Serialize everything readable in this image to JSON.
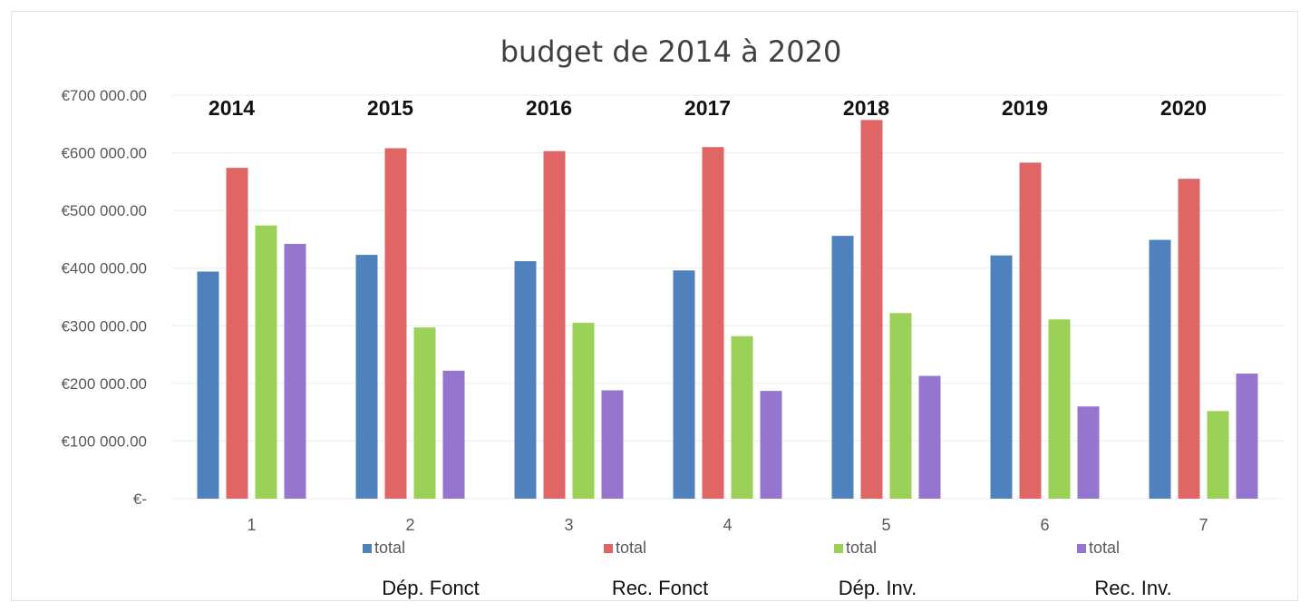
{
  "chart_data": {
    "type": "bar",
    "title": "budget de 2014 à 2020",
    "categories": [
      "1",
      "2",
      "3",
      "4",
      "5",
      "6",
      "7"
    ],
    "year_labels": [
      "2014",
      "2015",
      "2016",
      "2017",
      "2018",
      "2019",
      "2020"
    ],
    "ylim": [
      0,
      700000
    ],
    "yticks": [
      {
        "value": 0,
        "label": "€-"
      },
      {
        "value": 100000,
        "label": "€100 000.00"
      },
      {
        "value": 200000,
        "label": "€200 000.00"
      },
      {
        "value": 300000,
        "label": "€300 000.00"
      },
      {
        "value": 400000,
        "label": "€400 000.00"
      },
      {
        "value": 500000,
        "label": "€500 000.00"
      },
      {
        "value": 600000,
        "label": "€600 000.00"
      },
      {
        "value": 700000,
        "label": "€700 000.00"
      }
    ],
    "grid": true,
    "legend_position": "bottom",
    "series": [
      {
        "name": "total",
        "group_label": "Dép. Fonct",
        "color": "#4f81bd",
        "values": [
          394000,
          423000,
          412000,
          396000,
          456000,
          422000,
          449000
        ]
      },
      {
        "name": "total",
        "group_label": "Rec. Fonct",
        "color": "#e06666",
        "values": [
          574000,
          608000,
          603000,
          610000,
          657000,
          583000,
          555000
        ]
      },
      {
        "name": "total",
        "group_label": "Dép. Inv.",
        "color": "#9bd157",
        "values": [
          474000,
          297000,
          305000,
          282000,
          322000,
          311000,
          152000
        ]
      },
      {
        "name": "total",
        "group_label": "Rec. Inv.",
        "color": "#9575cd",
        "values": [
          442000,
          222000,
          188000,
          187000,
          213000,
          160000,
          217000
        ]
      }
    ]
  }
}
